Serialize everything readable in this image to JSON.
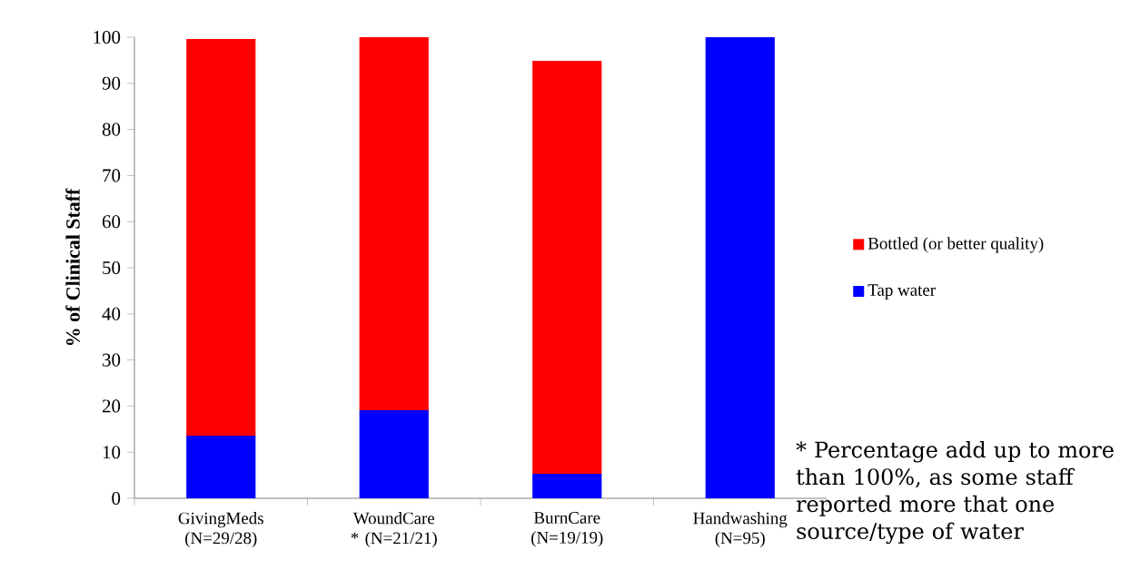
{
  "chart_data": {
    "type": "bar",
    "stacked": true,
    "ylabel": "% of Clinical Staff",
    "categories": [
      "GivingMeds (N=29/28)",
      "WoundCare * (N=21/21)",
      "BurnCare (N=19/19)",
      "Handwashing (N=95)"
    ],
    "series": [
      {
        "name": "Tap water",
        "color": "#0000ff",
        "values": [
          13.6,
          19.1,
          5.3,
          100
        ]
      },
      {
        "name": "Bottled (or better quality)",
        "color": "#ff0000",
        "values": [
          86,
          80.9,
          89.6,
          0
        ]
      }
    ],
    "ylim": [
      0,
      100
    ],
    "yticks": [
      0,
      10,
      20,
      30,
      40,
      50,
      60,
      70,
      80,
      90,
      100
    ],
    "legend": "right",
    "annotations": [
      "* Percentage add up to more than 100%, as some staff reported more that one source/type of water"
    ]
  }
}
